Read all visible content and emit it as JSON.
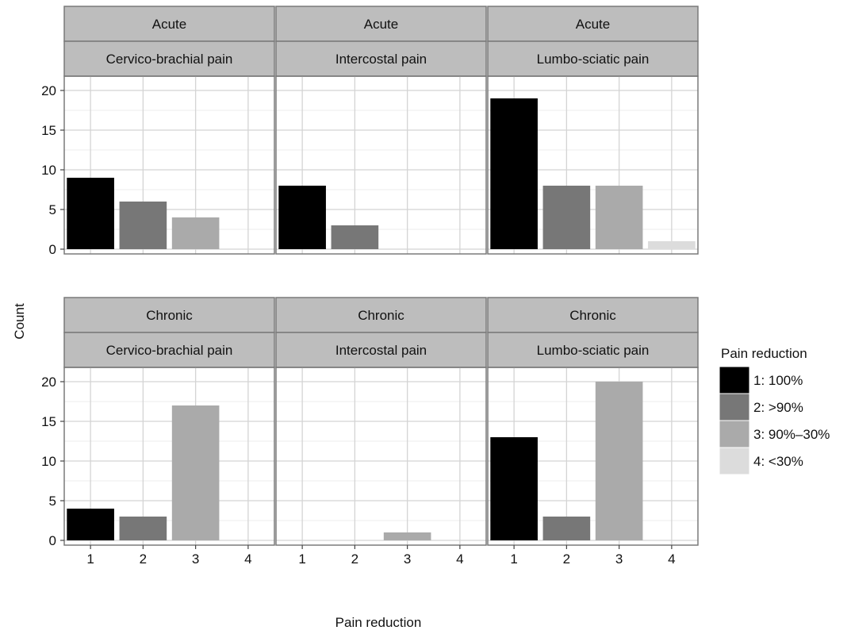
{
  "chart_data": {
    "type": "bar",
    "facet_rows": [
      "Acute",
      "Chronic"
    ],
    "facet_cols": [
      "Cervico-brachial pain",
      "Intercostal pain",
      "Lumbo-sciatic pain"
    ],
    "categories": [
      "1",
      "2",
      "3",
      "4"
    ],
    "xlabel": "Pain reduction",
    "ylabel": "Count",
    "ylim": [
      0,
      20
    ],
    "yticks": [
      0,
      5,
      10,
      15,
      20
    ],
    "grid": true,
    "legend": {
      "title": "Pain reduction",
      "position": "right",
      "entries": [
        {
          "label": "1: 100%",
          "color": "#000000"
        },
        {
          "label": "2: >90%",
          "color": "#777777"
        },
        {
          "label": "3: 90%–30%",
          "color": "#aaaaaa"
        },
        {
          "label": "4: <30%",
          "color": "#dcdcdc"
        }
      ]
    },
    "panels": [
      {
        "row": "Acute",
        "col": "Cervico-brachial pain",
        "values": [
          9,
          6,
          4,
          0
        ]
      },
      {
        "row": "Acute",
        "col": "Intercostal pain",
        "values": [
          8,
          3,
          0,
          0
        ]
      },
      {
        "row": "Acute",
        "col": "Lumbo-sciatic pain",
        "values": [
          19,
          8,
          8,
          1
        ]
      },
      {
        "row": "Chronic",
        "col": "Cervico-brachial pain",
        "values": [
          4,
          3,
          17,
          0
        ]
      },
      {
        "row": "Chronic",
        "col": "Intercostal pain",
        "values": [
          0,
          0,
          1,
          0
        ]
      },
      {
        "row": "Chronic",
        "col": "Lumbo-sciatic pain",
        "values": [
          13,
          3,
          20,
          0
        ]
      }
    ]
  }
}
